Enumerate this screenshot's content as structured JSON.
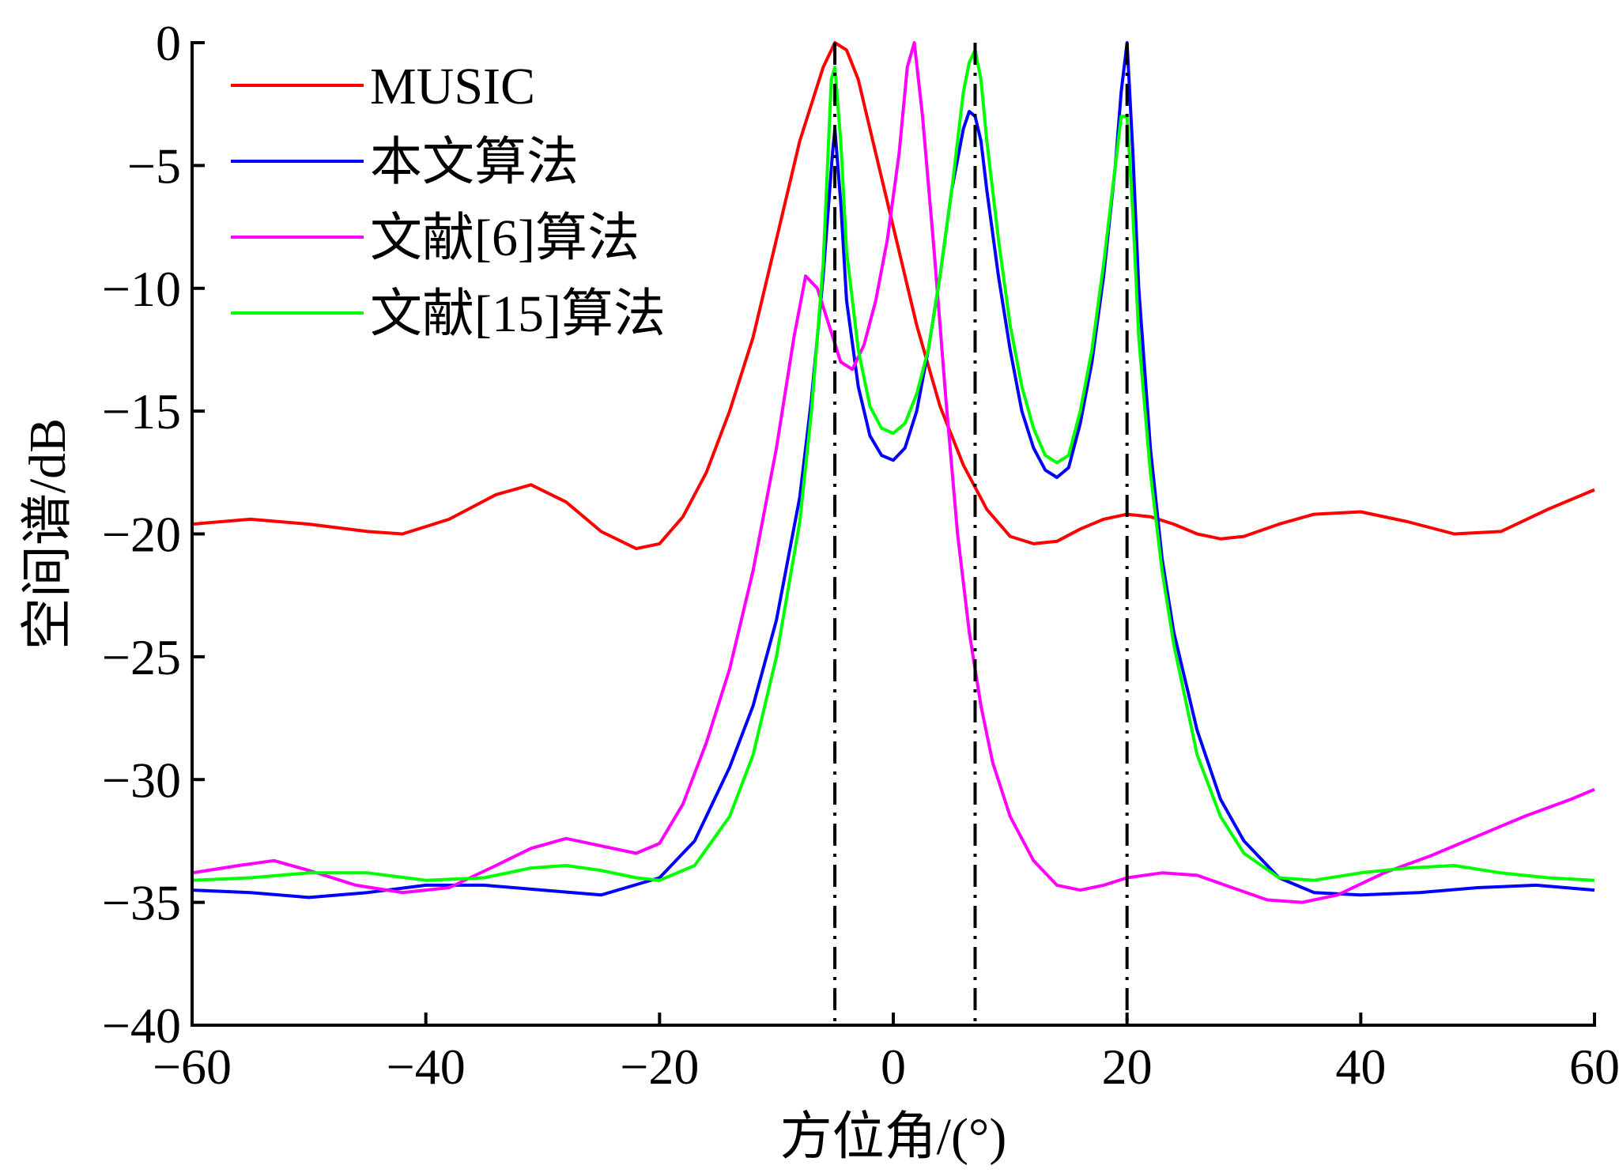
{
  "chart_data": {
    "type": "line",
    "title": "",
    "xlabel": "方位角/(°)",
    "ylabel": "空间谱/dB",
    "xlim": [
      -60,
      60
    ],
    "ylim": [
      -40,
      0
    ],
    "xticks": [
      -60,
      -40,
      -20,
      0,
      20,
      40,
      60
    ],
    "yticks": [
      0,
      -5,
      -10,
      -15,
      -20,
      -25,
      -30,
      -35,
      -40
    ],
    "xtick_labels": [
      "−60",
      "−40",
      "−20",
      "0",
      "20",
      "40",
      "60"
    ],
    "ytick_labels": [
      "0",
      "−5",
      "−10",
      "−15",
      "−20",
      "−25",
      "−30",
      "−35",
      "−40"
    ],
    "grid": false,
    "legend_position": "top-left",
    "true_doa_lines": [
      -5,
      7,
      20
    ],
    "series": [
      {
        "name": "MUSIC",
        "color": "#ff0000",
        "x": [
          -60,
          -55,
          -50,
          -45,
          -42,
          -38,
          -34,
          -31,
          -28,
          -25,
          -22,
          -20,
          -18,
          -16,
          -14,
          -12,
          -10,
          -8,
          -6,
          -5,
          -4,
          -3,
          -2,
          0,
          2,
          4,
          6,
          8,
          10,
          12,
          14,
          16,
          18,
          20,
          22,
          24,
          26,
          28,
          30,
          33,
          36,
          40,
          44,
          48,
          52,
          56,
          60
        ],
        "y": [
          -19.6,
          -19.4,
          -19.6,
          -19.9,
          -20.0,
          -19.4,
          -18.4,
          -18.0,
          -18.7,
          -19.9,
          -20.6,
          -20.4,
          -19.3,
          -17.5,
          -15.0,
          -12.0,
          -8.0,
          -4.0,
          -1.0,
          0.0,
          -0.3,
          -1.5,
          -3.5,
          -7.5,
          -11.5,
          -14.8,
          -17.2,
          -19.0,
          -20.1,
          -20.4,
          -20.3,
          -19.8,
          -19.4,
          -19.2,
          -19.3,
          -19.6,
          -20.0,
          -20.2,
          -20.1,
          -19.6,
          -19.2,
          -19.1,
          -19.5,
          -20.0,
          -19.9,
          -19.0,
          -18.2
        ]
      },
      {
        "name": "本文算法",
        "color": "#0000ff",
        "x": [
          -60,
          -55,
          -50,
          -45,
          -40,
          -35,
          -30,
          -25,
          -20,
          -17,
          -14,
          -12,
          -10,
          -8,
          -7,
          -6,
          -5.2,
          -5,
          -4.5,
          -4,
          -3,
          -2,
          -1,
          0,
          1,
          2,
          3,
          4,
          5,
          6,
          6.5,
          7,
          7.5,
          8,
          9,
          10,
          11,
          12,
          13,
          14,
          15,
          16,
          17,
          18,
          19,
          19.5,
          20,
          20.5,
          21,
          22,
          23,
          24,
          26,
          28,
          30,
          33,
          36,
          40,
          45,
          50,
          55,
          60
        ],
        "y": [
          -34.5,
          -34.6,
          -34.8,
          -34.6,
          -34.3,
          -34.3,
          -34.5,
          -34.7,
          -34.0,
          -32.5,
          -29.5,
          -27.0,
          -23.5,
          -18.5,
          -14.5,
          -9.5,
          -4.5,
          -3.5,
          -6.5,
          -10.5,
          -14.0,
          -16.0,
          -16.8,
          -17.0,
          -16.5,
          -15.0,
          -12.5,
          -9.5,
          -6.0,
          -3.5,
          -2.8,
          -3.0,
          -4.0,
          -6.0,
          -9.5,
          -12.5,
          -15.0,
          -16.5,
          -17.4,
          -17.7,
          -17.3,
          -15.5,
          -13.0,
          -9.5,
          -5.0,
          -2.0,
          0.0,
          -4.5,
          -10.0,
          -16.5,
          -21.0,
          -24.0,
          -28.0,
          -30.8,
          -32.5,
          -34.0,
          -34.6,
          -34.7,
          -34.6,
          -34.4,
          -34.3,
          -34.5
        ]
      },
      {
        "name": "文献[6]算法",
        "color": "#ff00ff",
        "x": [
          -60,
          -56,
          -53,
          -50,
          -46,
          -42,
          -38,
          -34,
          -31,
          -28,
          -25,
          -22,
          -20,
          -18,
          -16,
          -14,
          -12,
          -10,
          -8.5,
          -7.5,
          -6.5,
          -5.5,
          -4.5,
          -3.5,
          -2.5,
          -1.5,
          -0.5,
          0.5,
          1.2,
          1.8,
          2.5,
          3.5,
          4.5,
          5.5,
          6.5,
          7.5,
          8.5,
          10,
          12,
          14,
          16,
          18,
          20,
          23,
          26,
          29,
          32,
          35,
          38,
          42,
          46,
          50,
          54,
          58,
          60
        ],
        "y": [
          -33.8,
          -33.5,
          -33.3,
          -33.7,
          -34.3,
          -34.6,
          -34.4,
          -33.5,
          -32.8,
          -32.4,
          -32.7,
          -33.0,
          -32.6,
          -31.0,
          -28.5,
          -25.5,
          -21.5,
          -16.5,
          -12.0,
          -9.5,
          -10.0,
          -11.5,
          -13.0,
          -13.3,
          -12.3,
          -10.5,
          -8.0,
          -4.5,
          -1.0,
          0.0,
          -3.0,
          -8.5,
          -14.5,
          -20.0,
          -24.0,
          -27.0,
          -29.3,
          -31.5,
          -33.3,
          -34.3,
          -34.5,
          -34.3,
          -34.0,
          -33.8,
          -33.9,
          -34.4,
          -34.9,
          -35.0,
          -34.7,
          -33.8,
          -33.1,
          -32.3,
          -31.5,
          -30.8,
          -30.4
        ]
      },
      {
        "name": "文献[15]算法",
        "color": "#00ff00",
        "x": [
          -60,
          -55,
          -50,
          -45,
          -40,
          -35,
          -31,
          -28,
          -25,
          -22,
          -20,
          -17,
          -14,
          -12,
          -10,
          -8,
          -7,
          -6,
          -5.3,
          -5,
          -4.5,
          -4,
          -3,
          -2,
          -1,
          0,
          1,
          2,
          3,
          4,
          5,
          6,
          6.5,
          7,
          7.5,
          8,
          9,
          10,
          11,
          12,
          13,
          14,
          15,
          16,
          17,
          18,
          19,
          19.5,
          20,
          20.5,
          21,
          22,
          23,
          24,
          26,
          28,
          30,
          33,
          36,
          40,
          44,
          48,
          52,
          56,
          60
        ],
        "y": [
          -34.1,
          -34.0,
          -33.8,
          -33.8,
          -34.1,
          -34.0,
          -33.6,
          -33.5,
          -33.7,
          -34.0,
          -34.1,
          -33.5,
          -31.5,
          -29.0,
          -25.0,
          -19.5,
          -15.0,
          -9.0,
          -1.5,
          -1.0,
          -4.0,
          -8.5,
          -12.5,
          -14.8,
          -15.7,
          -15.9,
          -15.5,
          -14.3,
          -12.5,
          -9.5,
          -6.0,
          -2.0,
          -0.8,
          -0.3,
          -1.5,
          -4.0,
          -8.0,
          -11.5,
          -14.0,
          -15.7,
          -16.8,
          -17.1,
          -16.8,
          -15.0,
          -12.5,
          -9.0,
          -5.0,
          -3.0,
          -3.0,
          -7.0,
          -12.0,
          -17.5,
          -21.5,
          -24.5,
          -29.0,
          -31.5,
          -33.0,
          -34.0,
          -34.1,
          -33.8,
          -33.6,
          -33.5,
          -33.8,
          -34.0,
          -34.1
        ]
      }
    ]
  }
}
